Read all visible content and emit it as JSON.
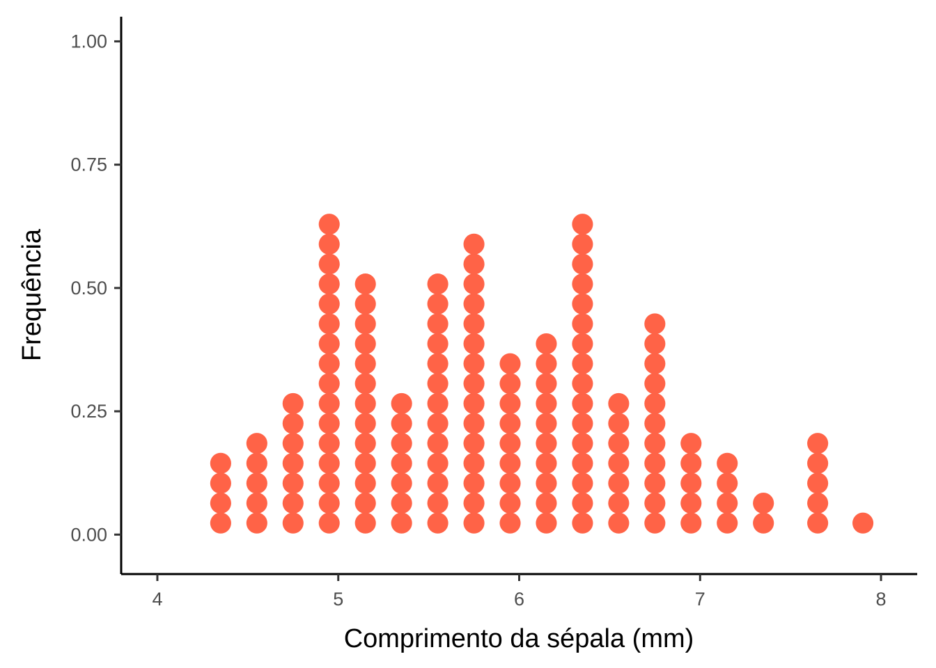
{
  "chart_data": {
    "type": "scatter",
    "subtype": "dotplot",
    "title": "",
    "xlabel": "Comprimento da sépala (mm)",
    "ylabel": "Frequência",
    "xlim": [
      3.8,
      8.2
    ],
    "ylim": [
      -0.08,
      1.05
    ],
    "x_ticks": [
      4,
      5,
      6,
      7,
      8
    ],
    "x_tick_labels": [
      "4",
      "5",
      "6",
      "7",
      "8"
    ],
    "y_ticks": [
      0,
      0.25,
      0.5,
      0.75,
      1
    ],
    "y_tick_labels": [
      "0.00",
      "0.25",
      "0.50",
      "0.75",
      "1.00"
    ],
    "dot_color": "#FF6347",
    "grid": false,
    "bins": [
      {
        "x": 4.35,
        "count": 4
      },
      {
        "x": 4.55,
        "count": 5
      },
      {
        "x": 4.75,
        "count": 7
      },
      {
        "x": 4.95,
        "count": 16
      },
      {
        "x": 5.15,
        "count": 13
      },
      {
        "x": 5.35,
        "count": 7
      },
      {
        "x": 5.55,
        "count": 13
      },
      {
        "x": 5.75,
        "count": 15
      },
      {
        "x": 5.95,
        "count": 9
      },
      {
        "x": 6.15,
        "count": 10
      },
      {
        "x": 6.35,
        "count": 16
      },
      {
        "x": 6.55,
        "count": 7
      },
      {
        "x": 6.75,
        "count": 11
      },
      {
        "x": 6.95,
        "count": 5
      },
      {
        "x": 7.15,
        "count": 4
      },
      {
        "x": 7.35,
        "count": 2
      },
      {
        "x": 7.65,
        "count": 5
      },
      {
        "x": 7.9,
        "count": 1
      }
    ]
  }
}
